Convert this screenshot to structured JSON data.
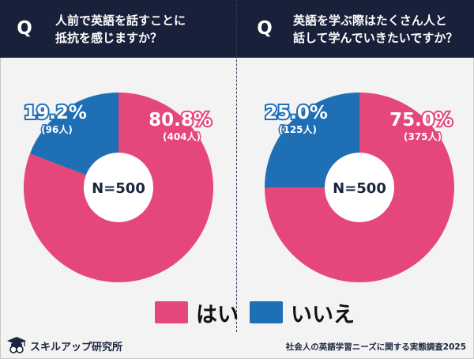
{
  "header": {
    "left": {
      "badge": "Q",
      "lines": [
        "人前で英語を話すことに",
        "抵抗を感じますか？"
      ]
    },
    "right": {
      "badge": "Q",
      "lines": [
        "英語を学ぶ際はたくさん人と",
        "話して学んでいきたいですか？"
      ]
    }
  },
  "colors": {
    "yes": "#e5477a",
    "no": "#1f6fb5",
    "header_bg": "#19213a"
  },
  "chart_data": [
    {
      "type": "pie",
      "title": "人前で英語を話すことに抵抗を感じますか？",
      "center_label": "N=500",
      "categories": [
        "はい",
        "いいえ"
      ],
      "values": [
        80.8,
        19.2
      ],
      "value_labels": [
        "80.8%",
        "19.2%"
      ],
      "counts": [
        "(404人)",
        "(96人)"
      ],
      "colors": [
        "#e5477a",
        "#1f6fb5"
      ]
    },
    {
      "type": "pie",
      "title": "英語を学ぶ際はたくさん人と話して学んでいきたいですか？",
      "center_label": "N=500",
      "categories": [
        "はい",
        "いいえ"
      ],
      "values": [
        75.0,
        25.0
      ],
      "value_labels": [
        "75.0%",
        "25.0%"
      ],
      "counts": [
        "(375人)",
        "(125人)"
      ],
      "colors": [
        "#e5477a",
        "#1f6fb5"
      ]
    }
  ],
  "legend": [
    {
      "label": "はい",
      "color": "#e5477a"
    },
    {
      "label": "いいえ",
      "color": "#1f6fb5"
    }
  ],
  "footer": {
    "brand": "スキルアップ研究所",
    "source": "社会人の英語学習ニーズに関する実態調査2025"
  }
}
